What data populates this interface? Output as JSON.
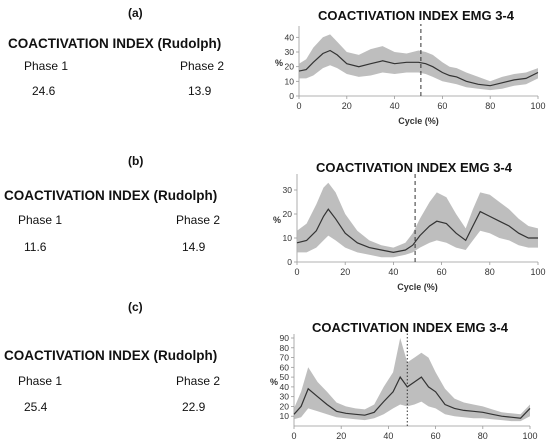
{
  "panels": [
    {
      "label": "(a)",
      "ci_title": "COACTIVATION INDEX (Rudolph)",
      "phase1_label": "Phase 1",
      "phase2_label": "Phase 2",
      "phase1_value": "24.6",
      "phase2_value": "13.9"
    },
    {
      "label": "(b)",
      "ci_title": "COACTIVATION INDEX (Rudolph)",
      "phase1_label": "Phase 1",
      "phase2_label": "Phase 2",
      "phase1_value": "11.6",
      "phase2_value": "14.9"
    },
    {
      "label": "(c)",
      "ci_title": "COACTIVATION INDEX (Rudolph)",
      "phase1_label": "Phase 1",
      "phase2_label": "Phase 2",
      "phase1_value": "25.4",
      "phase2_value": "22.9"
    }
  ],
  "chart_data": [
    {
      "type": "line",
      "title": "COACTIVATION INDEX EMG 3-4",
      "xlabel": "Cycle (%)",
      "ylabel": "%",
      "xlim": [
        0,
        100
      ],
      "ylim": [
        0,
        45
      ],
      "xticks": [
        0,
        20,
        40,
        60,
        80,
        100
      ],
      "yticks": [
        0,
        10,
        20,
        30,
        40
      ],
      "vline_x": 51,
      "vline_style": "dashed",
      "series": [
        {
          "x": [
            0,
            3,
            6,
            10,
            13,
            16,
            20,
            25,
            30,
            35,
            40,
            45,
            50,
            53,
            56,
            60,
            63,
            66,
            70,
            75,
            80,
            85,
            90,
            95,
            100
          ],
          "mean": [
            17,
            18,
            23,
            29,
            31,
            28,
            22,
            20,
            22,
            24,
            22,
            23,
            23,
            22,
            20,
            16,
            14,
            13,
            10,
            8,
            7,
            9,
            11,
            12,
            16
          ],
          "upper": [
            22,
            25,
            33,
            40,
            42,
            37,
            30,
            28,
            32,
            34,
            30,
            29,
            31,
            30,
            28,
            23,
            20,
            19,
            16,
            13,
            10,
            13,
            15,
            16,
            19
          ],
          "lower": [
            12,
            12,
            14,
            19,
            21,
            19,
            15,
            13,
            14,
            16,
            15,
            16,
            16,
            15,
            13,
            10,
            9,
            8,
            6,
            5,
            4,
            5,
            7,
            8,
            12
          ]
        }
      ]
    },
    {
      "type": "line",
      "title": "COACTIVATION INDEX EMG 3-4",
      "xlabel": "Cycle (%)",
      "ylabel": "%",
      "xlim": [
        0,
        100
      ],
      "ylim": [
        0,
        35
      ],
      "xticks": [
        0,
        20,
        40,
        60,
        80,
        100
      ],
      "yticks": [
        0,
        10,
        20,
        30
      ],
      "vline_x": 49,
      "vline_style": "dashed",
      "series": [
        {
          "x": [
            0,
            4,
            8,
            11,
            13,
            16,
            20,
            25,
            30,
            35,
            40,
            45,
            48,
            51,
            55,
            58,
            62,
            66,
            70,
            73,
            76,
            80,
            84,
            88,
            92,
            96,
            100
          ],
          "mean": [
            8,
            9,
            13,
            19,
            22,
            18,
            12,
            8,
            6,
            5,
            4,
            5,
            7,
            11,
            15,
            17,
            16,
            12,
            9,
            15,
            21,
            19,
            17,
            15,
            12,
            10,
            10
          ],
          "upper": [
            13,
            16,
            24,
            31,
            33,
            29,
            20,
            13,
            9,
            7,
            6,
            8,
            12,
            18,
            25,
            29,
            27,
            20,
            14,
            22,
            29,
            28,
            25,
            22,
            18,
            15,
            14
          ],
          "lower": [
            4,
            4,
            6,
            9,
            11,
            9,
            6,
            4,
            3,
            2,
            2,
            3,
            4,
            6,
            8,
            9,
            8,
            6,
            5,
            9,
            13,
            12,
            10,
            9,
            7,
            6,
            6
          ]
        }
      ]
    },
    {
      "type": "line",
      "title": "COACTIVATION INDEX EMG 3-4",
      "xlabel": "Cycle (%)",
      "ylabel": "%",
      "xlim": [
        0,
        100
      ],
      "ylim": [
        0,
        90
      ],
      "xticks": [
        0,
        20,
        40,
        60,
        80,
        100
      ],
      "yticks": [
        10,
        20,
        30,
        40,
        50,
        60,
        70,
        80,
        90
      ],
      "vline_x": 48,
      "vline_style": "dotted",
      "series": [
        {
          "x": [
            0,
            3,
            6,
            10,
            14,
            18,
            22,
            26,
            30,
            34,
            38,
            42,
            45,
            48,
            51,
            54,
            57,
            60,
            64,
            68,
            72,
            76,
            80,
            84,
            88,
            92,
            96,
            100
          ],
          "mean": [
            12,
            20,
            38,
            30,
            22,
            15,
            13,
            12,
            11,
            14,
            25,
            35,
            50,
            40,
            45,
            50,
            40,
            35,
            22,
            18,
            16,
            15,
            14,
            12,
            10,
            9,
            8,
            18
          ],
          "upper": [
            18,
            35,
            60,
            45,
            35,
            24,
            20,
            18,
            17,
            22,
            40,
            55,
            90,
            65,
            70,
            75,
            70,
            55,
            38,
            28,
            24,
            22,
            20,
            17,
            14,
            13,
            12,
            22
          ],
          "lower": [
            7,
            9,
            18,
            15,
            12,
            9,
            8,
            7,
            6,
            8,
            12,
            18,
            22,
            20,
            22,
            25,
            20,
            18,
            12,
            10,
            9,
            8,
            8,
            7,
            6,
            5,
            5,
            10
          ]
        }
      ]
    }
  ]
}
